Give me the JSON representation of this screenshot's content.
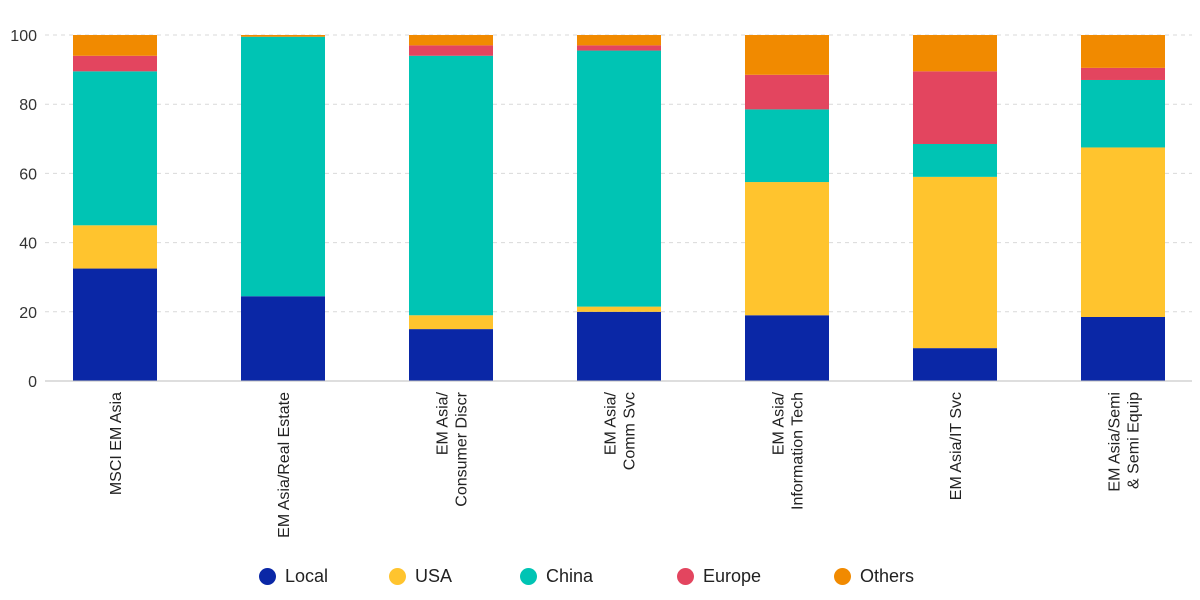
{
  "chart_data": {
    "type": "bar",
    "stacked": true,
    "title": "",
    "xlabel": "",
    "ylabel": "",
    "ylim": [
      0,
      100
    ],
    "yticks": [
      0,
      20,
      40,
      60,
      80,
      100
    ],
    "legend_position": "bottom",
    "grid": true,
    "categories": [
      [
        "MSCI EM Asia"
      ],
      [
        "EM Asia/Real Estate"
      ],
      [
        "EM Asia/",
        "Consumer Discr"
      ],
      [
        "EM Asia/",
        "Comm Svc"
      ],
      [
        "EM Asia/",
        "Information Tech"
      ],
      [
        "EM Asia/IT Svc"
      ],
      [
        "EM Asia/Semi",
        "& Semi Equip"
      ]
    ],
    "series": [
      {
        "name": "Local",
        "color": "#0a27a6",
        "values": [
          32.5,
          24.5,
          15.0,
          20.0,
          19.0,
          9.5,
          18.5
        ]
      },
      {
        "name": "USA",
        "color": "#ffc42e",
        "values": [
          12.5,
          0.0,
          4.0,
          1.5,
          38.5,
          49.5,
          49.0
        ]
      },
      {
        "name": "China",
        "color": "#00c4b4",
        "values": [
          44.5,
          75.0,
          75.0,
          74.0,
          21.0,
          9.5,
          19.5
        ]
      },
      {
        "name": "Europe",
        "color": "#e3455f",
        "values": [
          4.5,
          0.0,
          3.0,
          1.5,
          10.0,
          21.0,
          3.5
        ]
      },
      {
        "name": "Others",
        "color": "#f18a00",
        "values": [
          6.0,
          0.5,
          3.0,
          3.0,
          11.5,
          10.5,
          9.5
        ]
      }
    ]
  }
}
